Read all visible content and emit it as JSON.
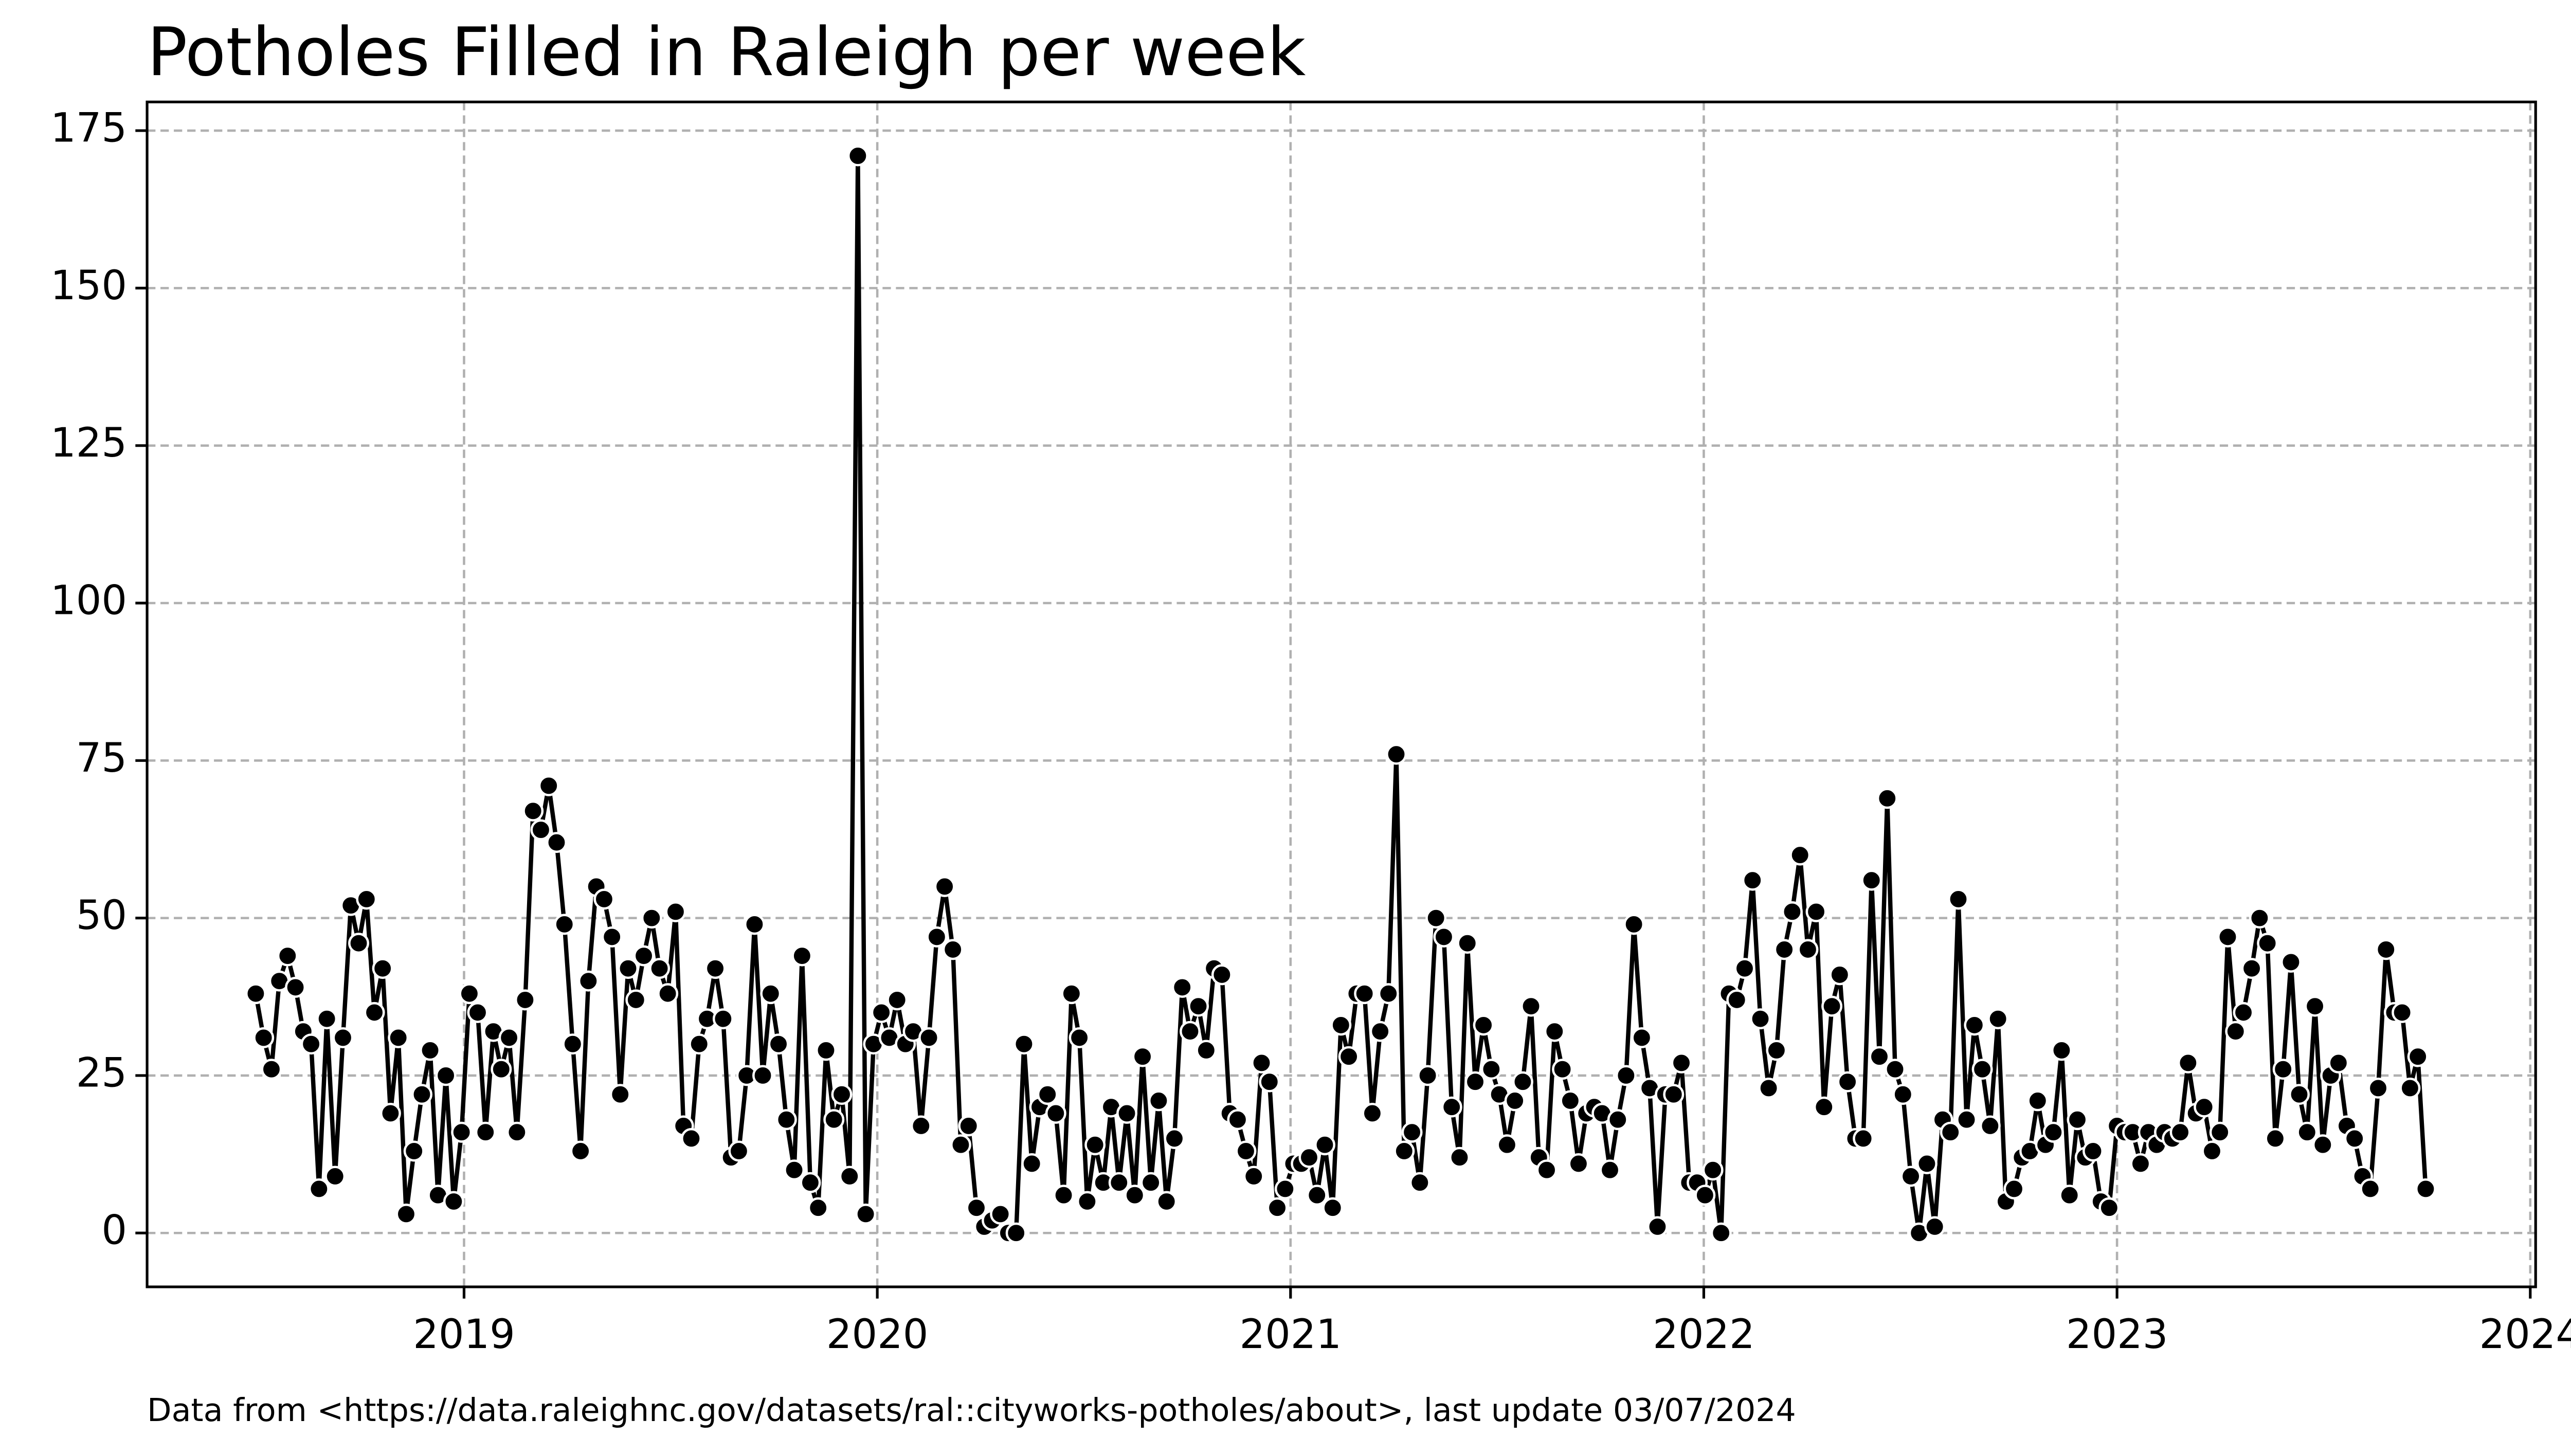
{
  "chart_data": {
    "type": "line",
    "title": "Potholes Filled in Raleigh per week",
    "caption": "Data from <https://data.raleighnc.gov/datasets/ral::cityworks-potholes/about>, last update 03/07/2024",
    "color": "#000000",
    "grid": true,
    "xlim": [
      2018.233,
      2024.013
    ],
    "xticks": [
      2019,
      2020,
      2021,
      2022,
      2023,
      2024
    ],
    "ylim": [
      -8.55,
      179.55
    ],
    "yticks": [
      0,
      25,
      50,
      75,
      100,
      125,
      150,
      175
    ],
    "x": [
      2018.496,
      2018.515,
      2018.534,
      2018.553,
      2018.573,
      2018.592,
      2018.611,
      2018.63,
      2018.649,
      2018.668,
      2018.688,
      2018.707,
      2018.726,
      2018.745,
      2018.764,
      2018.783,
      2018.803,
      2018.822,
      2018.841,
      2018.86,
      2018.879,
      2018.898,
      2018.918,
      2018.937,
      2018.956,
      2018.975,
      2018.994,
      2019.013,
      2019.033,
      2019.052,
      2019.071,
      2019.09,
      2019.109,
      2019.128,
      2019.148,
      2019.167,
      2019.186,
      2019.205,
      2019.224,
      2019.243,
      2019.263,
      2019.282,
      2019.301,
      2019.32,
      2019.339,
      2019.358,
      2019.378,
      2019.397,
      2019.416,
      2019.435,
      2019.454,
      2019.473,
      2019.493,
      2019.512,
      2019.531,
      2019.55,
      2019.569,
      2019.588,
      2019.608,
      2019.627,
      2019.646,
      2019.665,
      2019.684,
      2019.703,
      2019.723,
      2019.742,
      2019.761,
      2019.78,
      2019.799,
      2019.818,
      2019.838,
      2019.857,
      2019.876,
      2019.895,
      2019.914,
      2019.933,
      2019.953,
      2019.972,
      2019.991,
      2020.01,
      2020.029,
      2020.048,
      2020.068,
      2020.087,
      2020.106,
      2020.125,
      2020.144,
      2020.163,
      2020.183,
      2020.202,
      2020.221,
      2020.24,
      2020.259,
      2020.278,
      2020.298,
      2020.317,
      2020.336,
      2020.355,
      2020.374,
      2020.393,
      2020.412,
      2020.432,
      2020.451,
      2020.47,
      2020.489,
      2020.508,
      2020.527,
      2020.547,
      2020.566,
      2020.585,
      2020.604,
      2020.623,
      2020.642,
      2020.662,
      2020.681,
      2020.7,
      2020.719,
      2020.738,
      2020.757,
      2020.777,
      2020.796,
      2020.815,
      2020.834,
      2020.853,
      2020.872,
      2020.892,
      2020.911,
      2020.93,
      2020.949,
      2020.968,
      2020.987,
      2021.007,
      2021.026,
      2021.045,
      2021.064,
      2021.083,
      2021.102,
      2021.122,
      2021.141,
      2021.16,
      2021.179,
      2021.198,
      2021.217,
      2021.237,
      2021.256,
      2021.275,
      2021.294,
      2021.313,
      2021.332,
      2021.352,
      2021.371,
      2021.39,
      2021.409,
      2021.428,
      2021.447,
      2021.467,
      2021.486,
      2021.505,
      2021.524,
      2021.543,
      2021.562,
      2021.582,
      2021.601,
      2021.62,
      2021.639,
      2021.658,
      2021.677,
      2021.697,
      2021.716,
      2021.735,
      2021.754,
      2021.773,
      2021.792,
      2021.812,
      2021.831,
      2021.85,
      2021.869,
      2021.888,
      2021.907,
      2021.927,
      2021.946,
      2021.965,
      2021.984,
      2022.003,
      2022.022,
      2022.042,
      2022.061,
      2022.08,
      2022.099,
      2022.118,
      2022.137,
      2022.157,
      2022.176,
      2022.195,
      2022.214,
      2022.233,
      2022.252,
      2022.272,
      2022.291,
      2022.31,
      2022.329,
      2022.348,
      2022.367,
      2022.386,
      2022.406,
      2022.425,
      2022.444,
      2022.463,
      2022.482,
      2022.501,
      2022.521,
      2022.54,
      2022.559,
      2022.578,
      2022.597,
      2022.616,
      2022.636,
      2022.655,
      2022.674,
      2022.693,
      2022.712,
      2022.731,
      2022.751,
      2022.77,
      2022.789,
      2022.808,
      2022.827,
      2022.846,
      2022.866,
      2022.885,
      2022.904,
      2022.923,
      2022.942,
      2022.961,
      2022.981,
      2023.0,
      2023.019,
      2023.038,
      2023.057,
      2023.076,
      2023.096,
      2023.115,
      2023.134,
      2023.153,
      2023.172,
      2023.191,
      2023.211,
      2023.23,
      2023.249,
      2023.268,
      2023.287,
      2023.306,
      2023.326,
      2023.345,
      2023.364,
      2023.383,
      2023.402,
      2023.421,
      2023.441,
      2023.46,
      2023.479,
      2023.498,
      2023.517,
      2023.536,
      2023.556,
      2023.575,
      2023.594,
      2023.613,
      2023.632,
      2023.651,
      2023.671,
      2023.69,
      2023.709,
      2023.728,
      2023.747
    ],
    "values": [
      38,
      31,
      26,
      40,
      44,
      39,
      32,
      30,
      7,
      34,
      9,
      31,
      52,
      46,
      53,
      35,
      42,
      19,
      31,
      3,
      13,
      22,
      29,
      6,
      25,
      5,
      16,
      38,
      35,
      16,
      32,
      26,
      31,
      16,
      37,
      67,
      64,
      71,
      62,
      49,
      30,
      13,
      40,
      55,
      53,
      47,
      22,
      42,
      37,
      44,
      50,
      42,
      38,
      51,
      17,
      15,
      30,
      34,
      42,
      34,
      12,
      13,
      25,
      49,
      25,
      38,
      30,
      18,
      10,
      44,
      8,
      4,
      29,
      18,
      22,
      9,
      171,
      3,
      30,
      35,
      31,
      37,
      30,
      32,
      17,
      31,
      47,
      55,
      45,
      14,
      17,
      4,
      1,
      2,
      3,
      0,
      0,
      30,
      11,
      20,
      22,
      19,
      6,
      38,
      31,
      5,
      14,
      8,
      20,
      8,
      19,
      6,
      28,
      8,
      21,
      5,
      15,
      39,
      32,
      36,
      29,
      42,
      41,
      19,
      18,
      13,
      9,
      27,
      24,
      4,
      7,
      11,
      11,
      12,
      6,
      14,
      4,
      33,
      28,
      38,
      38,
      19,
      32,
      38,
      76,
      13,
      16,
      8,
      25,
      50,
      47,
      20,
      12,
      46,
      24,
      33,
      26,
      22,
      14,
      21,
      24,
      36,
      12,
      10,
      32,
      26,
      21,
      11,
      19,
      20,
      19,
      10,
      18,
      25,
      49,
      31,
      23,
      1,
      22,
      22,
      27,
      8,
      8,
      6,
      10,
      0,
      38,
      37,
      42,
      56,
      34,
      23,
      29,
      45,
      51,
      60,
      45,
      51,
      20,
      36,
      41,
      24,
      15,
      15,
      56,
      28,
      69,
      26,
      22,
      9,
      0,
      11,
      1,
      18,
      16,
      53,
      18,
      33,
      26,
      17,
      34,
      5,
      7,
      12,
      13,
      21,
      14,
      16,
      29,
      6,
      18,
      12,
      13,
      5,
      4,
      17,
      16,
      16,
      11,
      16,
      14,
      16,
      15,
      16,
      27,
      19,
      20,
      13,
      16,
      47,
      32,
      35,
      42,
      50,
      46,
      15,
      26,
      43,
      22,
      16,
      36,
      14,
      25,
      27,
      17,
      15,
      9,
      7,
      23,
      45,
      35,
      35,
      23,
      28,
      7
    ]
  }
}
